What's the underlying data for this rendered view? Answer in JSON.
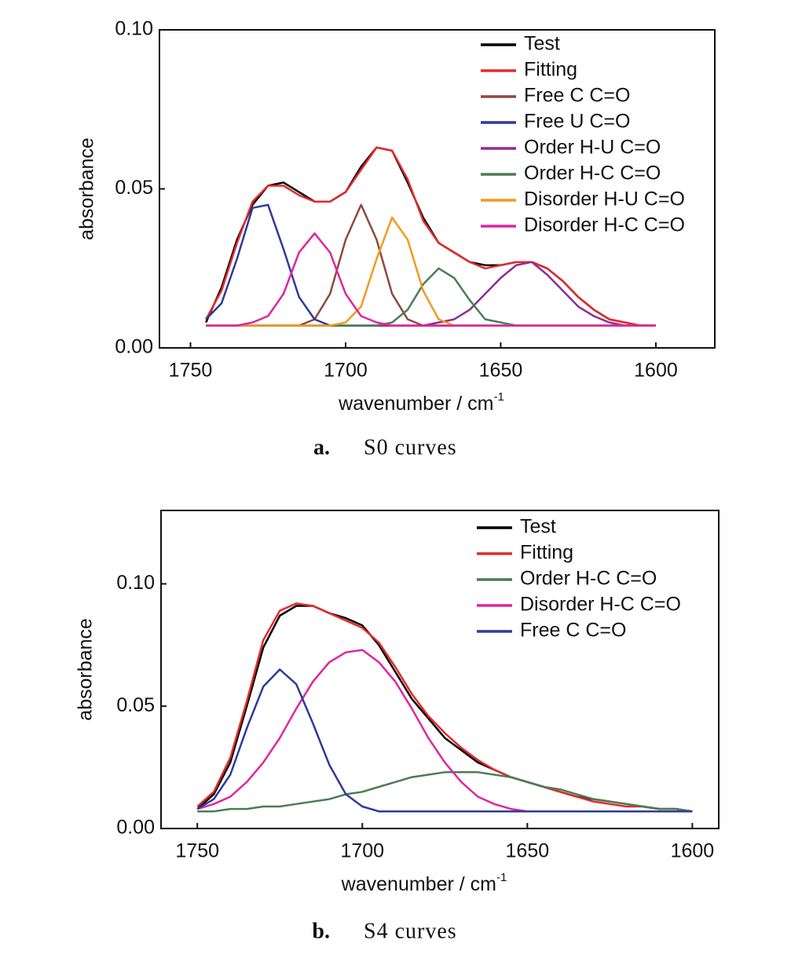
{
  "chart_data": [
    {
      "type": "line",
      "x_label": "wavenumber / cm",
      "x_label_sup": "-1",
      "y_label": "absorbance",
      "caption_label": "a.",
      "caption": "S0 curves",
      "legend": "upper right",
      "xlim": [
        1760,
        1581
      ],
      "xticks": [
        1750,
        1700,
        1650,
        1600
      ],
      "ylim": [
        0,
        0.1
      ],
      "yticks": [
        {
          "value": 0,
          "label": "0.00"
        },
        {
          "value": 0.05,
          "label": "0.05"
        },
        {
          "value": 0.1,
          "label": "0.10"
        }
      ],
      "x": [
        1745,
        1740,
        1735,
        1730,
        1725,
        1720,
        1715,
        1710,
        1705,
        1700,
        1695,
        1690,
        1685,
        1680,
        1675,
        1670,
        1665,
        1660,
        1655,
        1650,
        1645,
        1640,
        1635,
        1630,
        1625,
        1620,
        1615,
        1610,
        1605,
        1600
      ],
      "series": [
        {
          "name": "Test",
          "color": "#000000",
          "values": [
            0.008,
            0.019,
            0.034,
            0.045,
            0.051,
            0.052,
            0.049,
            0.046,
            0.046,
            0.049,
            0.057,
            0.063,
            0.062,
            0.052,
            0.041,
            0.033,
            0.03,
            0.027,
            0.026,
            0.026,
            0.027,
            0.027,
            0.025,
            0.021,
            0.016,
            0.012,
            0.009,
            0.008,
            0.007,
            0.007
          ]
        },
        {
          "name": "Fitting",
          "color": "#e32b2b",
          "values": [
            0.009,
            0.018,
            0.033,
            0.046,
            0.051,
            0.051,
            0.048,
            0.046,
            0.046,
            0.049,
            0.056,
            0.063,
            0.062,
            0.053,
            0.04,
            0.033,
            0.03,
            0.027,
            0.025,
            0.026,
            0.027,
            0.027,
            0.025,
            0.021,
            0.016,
            0.012,
            0.009,
            0.008,
            0.007,
            0.007
          ]
        },
        {
          "name": "Free C C=O",
          "color": "#8b4b3a",
          "values": [
            0.007,
            0.007,
            0.007,
            0.007,
            0.007,
            0.007,
            0.007,
            0.009,
            0.017,
            0.034,
            0.045,
            0.034,
            0.017,
            0.009,
            0.007,
            0.007,
            0.007,
            0.007,
            0.007,
            0.007,
            0.007,
            0.007,
            0.007,
            0.007,
            0.007,
            0.007,
            0.007,
            0.007,
            0.007,
            0.007
          ]
        },
        {
          "name": "Free U C=O",
          "color": "#2e3a9a",
          "values": [
            0.009,
            0.014,
            0.028,
            0.044,
            0.045,
            0.031,
            0.016,
            0.009,
            0.007,
            0.007,
            0.007,
            0.007,
            0.007,
            0.007,
            0.007,
            0.007,
            0.007,
            0.007,
            0.007,
            0.007,
            0.007,
            0.007,
            0.007,
            0.007,
            0.007,
            0.007,
            0.007,
            0.007,
            0.007,
            0.007
          ]
        },
        {
          "name": "Order H-U C=O",
          "color": "#8e2d92",
          "values": [
            0.007,
            0.007,
            0.007,
            0.007,
            0.007,
            0.007,
            0.007,
            0.007,
            0.007,
            0.007,
            0.007,
            0.007,
            0.007,
            0.007,
            0.007,
            0.008,
            0.009,
            0.012,
            0.017,
            0.022,
            0.026,
            0.027,
            0.023,
            0.018,
            0.013,
            0.01,
            0.008,
            0.007,
            0.007,
            0.007
          ]
        },
        {
          "name": "Order H-C C=O",
          "color": "#4a7d55",
          "values": [
            0.007,
            0.007,
            0.007,
            0.007,
            0.007,
            0.007,
            0.007,
            0.007,
            0.007,
            0.007,
            0.007,
            0.007,
            0.008,
            0.012,
            0.02,
            0.025,
            0.022,
            0.015,
            0.009,
            0.008,
            0.007,
            0.007,
            0.007,
            0.007,
            0.007,
            0.007,
            0.007,
            0.007,
            0.007,
            0.007
          ]
        },
        {
          "name": "Disorder H-U C=O",
          "color": "#f39a1d",
          "values": [
            0.007,
            0.007,
            0.007,
            0.007,
            0.007,
            0.007,
            0.007,
            0.007,
            0.007,
            0.008,
            0.013,
            0.028,
            0.041,
            0.034,
            0.018,
            0.009,
            0.007,
            0.007,
            0.007,
            0.007,
            0.007,
            0.007,
            0.007,
            0.007,
            0.007,
            0.007,
            0.007,
            0.007,
            0.007,
            0.007
          ]
        },
        {
          "name": "Disorder H-C C=O",
          "color": "#e0259e",
          "values": [
            0.007,
            0.007,
            0.007,
            0.008,
            0.01,
            0.017,
            0.03,
            0.036,
            0.03,
            0.017,
            0.01,
            0.008,
            0.007,
            0.007,
            0.007,
            0.007,
            0.007,
            0.007,
            0.007,
            0.007,
            0.007,
            0.007,
            0.007,
            0.007,
            0.007,
            0.007,
            0.007,
            0.007,
            0.007,
            0.007
          ]
        }
      ]
    },
    {
      "type": "line",
      "x_label": "wavenumber / cm",
      "x_label_sup": "-1",
      "y_label": "absorbance",
      "caption_label": "b.",
      "caption": "S4 curves",
      "legend": "upper right",
      "xlim": [
        1761,
        1592
      ],
      "xticks": [
        1750,
        1700,
        1650,
        1600
      ],
      "ylim": [
        0,
        0.13
      ],
      "yticks": [
        {
          "value": 0,
          "label": "0.00"
        },
        {
          "value": 0.05,
          "label": "0.05"
        },
        {
          "value": 0.1,
          "label": "0.10"
        }
      ],
      "x": [
        1750,
        1745,
        1740,
        1735,
        1730,
        1725,
        1720,
        1715,
        1710,
        1705,
        1700,
        1695,
        1690,
        1685,
        1680,
        1675,
        1670,
        1665,
        1660,
        1655,
        1650,
        1645,
        1640,
        1635,
        1630,
        1625,
        1620,
        1615,
        1610,
        1605,
        1600
      ],
      "series": [
        {
          "name": "Test",
          "color": "#000000",
          "values": [
            0.008,
            0.014,
            0.027,
            0.05,
            0.074,
            0.087,
            0.091,
            0.091,
            0.088,
            0.086,
            0.083,
            0.075,
            0.064,
            0.053,
            0.045,
            0.037,
            0.032,
            0.027,
            0.024,
            0.021,
            0.019,
            0.017,
            0.015,
            0.013,
            0.012,
            0.011,
            0.01,
            0.009,
            0.008,
            0.008,
            0.007
          ]
        },
        {
          "name": "Fitting",
          "color": "#e32b2b",
          "values": [
            0.009,
            0.015,
            0.029,
            0.052,
            0.077,
            0.089,
            0.092,
            0.091,
            0.088,
            0.085,
            0.082,
            0.076,
            0.066,
            0.055,
            0.046,
            0.039,
            0.033,
            0.028,
            0.024,
            0.021,
            0.019,
            0.017,
            0.015,
            0.013,
            0.011,
            0.01,
            0.009,
            0.009,
            0.008,
            0.008,
            0.007
          ]
        },
        {
          "name": "Order H-C C=O",
          "color": "#4a7d55",
          "values": [
            0.007,
            0.007,
            0.008,
            0.008,
            0.009,
            0.009,
            0.01,
            0.011,
            0.012,
            0.014,
            0.015,
            0.017,
            0.019,
            0.021,
            0.022,
            0.023,
            0.023,
            0.023,
            0.022,
            0.021,
            0.019,
            0.017,
            0.016,
            0.014,
            0.012,
            0.011,
            0.01,
            0.009,
            0.008,
            0.008,
            0.007
          ]
        },
        {
          "name": "Disorder H-C C=O",
          "color": "#e0259e",
          "values": [
            0.008,
            0.01,
            0.013,
            0.019,
            0.027,
            0.037,
            0.049,
            0.06,
            0.068,
            0.072,
            0.073,
            0.068,
            0.06,
            0.049,
            0.037,
            0.027,
            0.019,
            0.013,
            0.01,
            0.008,
            0.007,
            0.007,
            0.007,
            0.007,
            0.007,
            0.007,
            0.007,
            0.007,
            0.007,
            0.007,
            0.007
          ]
        },
        {
          "name": "Free C C=O",
          "color": "#2e3a9a",
          "values": [
            0.008,
            0.012,
            0.022,
            0.041,
            0.058,
            0.065,
            0.059,
            0.043,
            0.026,
            0.014,
            0.009,
            0.007,
            0.007,
            0.007,
            0.007,
            0.007,
            0.007,
            0.007,
            0.007,
            0.007,
            0.007,
            0.007,
            0.007,
            0.007,
            0.007,
            0.007,
            0.007,
            0.007,
            0.007,
            0.007,
            0.007
          ]
        }
      ]
    }
  ]
}
